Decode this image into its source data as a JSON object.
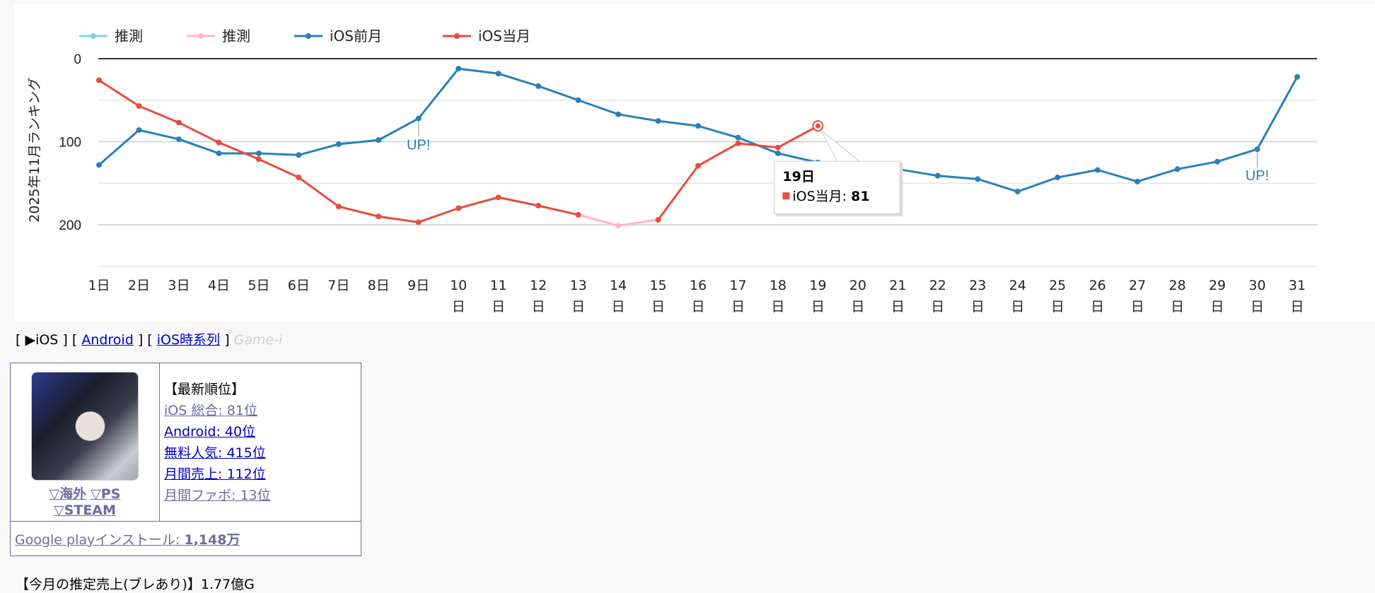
{
  "chart_data": {
    "type": "line",
    "ylabel": "2025年11月ランキング",
    "ylim": [
      250,
      0
    ],
    "y_reversed": true,
    "yticks": [
      "0",
      "100",
      "200"
    ],
    "grid": true,
    "legend_position": "top-left",
    "categories": [
      "1日",
      "2日",
      "3日",
      "4日",
      "5日",
      "6日",
      "7日",
      "8日",
      "9日",
      "10日",
      "11日",
      "12日",
      "13日",
      "14日",
      "15日",
      "16日",
      "17日",
      "18日",
      "19日",
      "20日",
      "21日",
      "22日",
      "23日",
      "24日",
      "25日",
      "26日",
      "27日",
      "28日",
      "29日",
      "30日",
      "31日"
    ],
    "series": [
      {
        "name": "推測",
        "color": "#87ceeb",
        "values": [
          null,
          null,
          null,
          null,
          null,
          null,
          null,
          null,
          null,
          null,
          null,
          null,
          null,
          null,
          null,
          null,
          null,
          null,
          null,
          null,
          null,
          null,
          null,
          null,
          null,
          null,
          null,
          null,
          null,
          null,
          null
        ]
      },
      {
        "name": "推測",
        "color": "#ffb6c1",
        "values": [
          null,
          null,
          null,
          null,
          null,
          null,
          null,
          null,
          null,
          null,
          null,
          null,
          188,
          201,
          194,
          null,
          null,
          null,
          null,
          null,
          null,
          null,
          null,
          null,
          null,
          null,
          null,
          null,
          null,
          null,
          null
        ]
      },
      {
        "name": "iOS前月",
        "color": "#2980b9",
        "values": [
          128,
          86,
          97,
          114,
          114,
          116,
          103,
          98,
          72,
          12,
          18,
          33,
          50,
          67,
          75,
          81,
          95,
          114,
          125,
          130,
          133,
          141,
          145,
          160,
          143,
          134,
          148,
          133,
          124,
          109,
          22
        ]
      },
      {
        "name": "iOS当月",
        "color": "#e74c3c",
        "values": [
          26,
          57,
          77,
          101,
          121,
          143,
          178,
          190,
          197,
          180,
          167,
          177,
          188,
          null,
          194,
          129,
          102,
          107,
          81,
          null,
          null,
          null,
          null,
          null,
          null,
          null,
          null,
          null,
          null,
          null,
          null
        ]
      }
    ],
    "annotations": [
      {
        "series": "iOS前月",
        "x": "9日",
        "text": "UP!"
      },
      {
        "series": "iOS前月",
        "x": "30日",
        "text": "UP!"
      }
    ],
    "tooltip": {
      "title": "19日",
      "series": "iOS当月",
      "label": "iOS当月: ",
      "value": "81"
    }
  },
  "nav": {
    "open": "[ ",
    "current": "▶iOS",
    "sep1": " ] [ ",
    "android": "Android",
    "sep2": " ] [ ",
    "timeseries": "iOS時系列",
    "close": " ] ",
    "brand": "Game-i"
  },
  "app": {
    "links": {
      "overseas": "▽海外",
      "ps": "▽PS",
      "steam": "▽STEAM"
    },
    "latest_rank_heading": "【最新順位】",
    "ranks": [
      {
        "label": "iOS 総合: 81位"
      },
      {
        "label": "Android: 40位"
      },
      {
        "label": "無料人気: 415位"
      },
      {
        "label": "月間売上: 112位"
      },
      {
        "label": "月間ファボ: 13位"
      }
    ],
    "install_label": "Google playインストール: ",
    "install_value": "1,148万"
  },
  "sales": "【今月の推定売上(ブレあり)】1.77億G"
}
